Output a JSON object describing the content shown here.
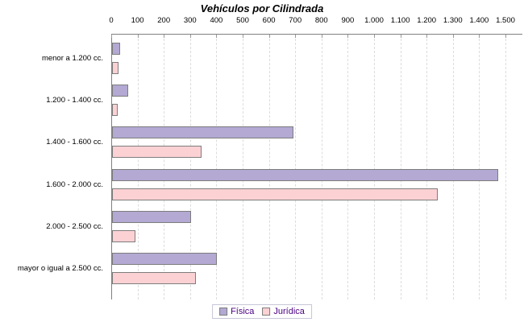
{
  "title": "Vehículos por Cilindrada",
  "chart_data": {
    "type": "bar",
    "orientation": "horizontal",
    "title": "Vehículos por Cilindrada",
    "categories": [
      "menor a 1.200 cc.",
      "1.200 - 1.400 cc.",
      "1.400 - 1.600 cc.",
      "1.600 - 2.000 cc.",
      "2.000 - 2.500 cc.",
      "mayor o igual a 2.500 cc."
    ],
    "series": [
      {
        "key": "fisica",
        "name": "Física",
        "color": "#b3a9d3",
        "values": [
          30,
          60,
          690,
          1470,
          300,
          400
        ]
      },
      {
        "key": "juridica",
        "name": "Jurídica",
        "color": "#fcd1d4",
        "values": [
          25,
          20,
          340,
          1240,
          90,
          320
        ]
      }
    ],
    "xlim": [
      0,
      1500
    ],
    "x_tick_interval": 100,
    "x_tick_labels": [
      "0",
      "100",
      "200",
      "300",
      "400",
      "500",
      "600",
      "700",
      "800",
      "900",
      "1.000",
      "1.100",
      "1.200",
      "1.300",
      "1.400",
      "1.500"
    ],
    "grid": "vertical-dashed",
    "legend_position": "bottom-center"
  },
  "colors": {
    "fisica_fill": "#b3a9d3",
    "juridica_fill": "#fcd1d4",
    "bar_border": "#7d7d7d",
    "axis_line": "#808080",
    "gridline": "#dcdcdc",
    "legend_text": "#4b0082",
    "title_text": "#000000",
    "background": "#ffffff"
  }
}
